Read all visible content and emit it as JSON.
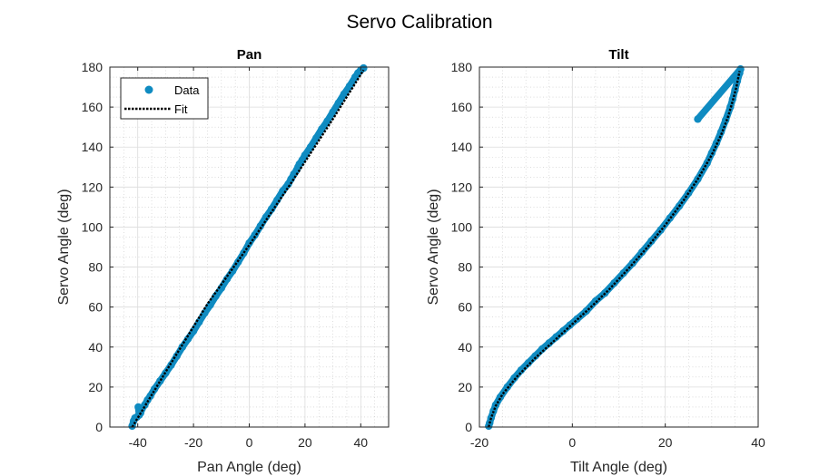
{
  "figure": {
    "title": "Servo Calibration"
  },
  "chart_data": [
    {
      "type": "scatter",
      "title": "Pan",
      "xlabel": "Pan Angle (deg)",
      "ylabel": "Servo Angle (deg)",
      "xlim": [
        -50,
        50
      ],
      "ylim": [
        0,
        180
      ],
      "xticks": [
        "-40",
        "-20",
        "0",
        "20",
        "40"
      ],
      "yticks": [
        "0",
        "20",
        "40",
        "60",
        "80",
        "100",
        "120",
        "140",
        "160",
        "180"
      ],
      "grid": true,
      "minor_grid": true,
      "legend": {
        "placement": "top-left",
        "entries": [
          "Data",
          "Fit"
        ]
      },
      "series": [
        {
          "name": "Data",
          "style": "markers",
          "color": "#0f8bc1",
          "x": [
            -42,
            -41.5,
            -41,
            -40.3,
            -39.5,
            -39.8,
            -39,
            -38.5,
            -37.5,
            -36.5,
            -35.5,
            -34,
            -32,
            -30,
            -28,
            -26,
            -24,
            -22,
            -20,
            -18,
            -16,
            -14,
            -12,
            -10,
            -8,
            -6,
            -4,
            -2,
            0,
            2,
            4,
            6,
            8,
            10,
            12,
            14,
            15,
            16,
            17,
            17.5,
            18,
            19,
            20,
            22,
            24,
            26,
            28,
            30,
            32,
            34,
            36,
            38,
            39,
            40,
            41
          ],
          "y": [
            0.5,
            3,
            4.5,
            5,
            6,
            10,
            7,
            9,
            11,
            13.5,
            15.5,
            19,
            23,
            27,
            31,
            35.5,
            40,
            44,
            48,
            52.5,
            57,
            61,
            65.5,
            69.5,
            74,
            78,
            82.5,
            87,
            92,
            96,
            100.5,
            105,
            109,
            113.5,
            118,
            121.5,
            124,
            126.5,
            128.5,
            130,
            131.5,
            133.5,
            136,
            140,
            144.5,
            149,
            153,
            157.5,
            162,
            166.5,
            170.5,
            175,
            177,
            178.5,
            179.5
          ]
        },
        {
          "name": "Fit",
          "style": "dotted-line",
          "color": "#000000",
          "x": [
            -42,
            -30,
            -15,
            0,
            15,
            30,
            41
          ],
          "y": [
            0,
            27.5,
            61.5,
            91,
            122,
            154,
            178.5
          ]
        }
      ]
    },
    {
      "type": "scatter",
      "title": "Tilt",
      "xlabel": "Tilt Angle (deg)",
      "ylabel": "Servo Angle (deg)",
      "xlim": [
        -20,
        40
      ],
      "ylim": [
        0,
        180
      ],
      "xticks": [
        "-20",
        "0",
        "20",
        "40"
      ],
      "yticks": [
        "0",
        "20",
        "40",
        "60",
        "80",
        "100",
        "120",
        "140",
        "160",
        "180"
      ],
      "grid": true,
      "minor_grid": true,
      "series": [
        {
          "name": "Data",
          "style": "markers",
          "color": "#0f8bc1",
          "x": [
            -18,
            -17.8,
            -17.5,
            -17,
            -16.5,
            -15.5,
            -14,
            -12.5,
            -11,
            -9.5,
            -8,
            -6.5,
            -5,
            -3.5,
            -2,
            -0.5,
            1,
            3,
            5,
            7,
            9,
            11,
            13,
            15,
            17,
            19,
            21,
            23,
            25,
            27,
            29,
            30,
            31,
            32,
            33,
            34,
            34.5,
            35,
            35.5,
            36,
            36.2,
            27
          ],
          "y": [
            0.5,
            2,
            4.5,
            8,
            11,
            15,
            20,
            24.5,
            28.5,
            32,
            35.5,
            39,
            42,
            45,
            48,
            51,
            54,
            58,
            63,
            67,
            72,
            77,
            82,
            87.5,
            93,
            98.5,
            104.5,
            110.5,
            117,
            124,
            132,
            137,
            142,
            147.5,
            153.5,
            160,
            164,
            168.5,
            173,
            177,
            179,
            154
          ]
        },
        {
          "name": "Fit",
          "style": "dotted-line",
          "color": "#000000",
          "x": [
            -18,
            -17.5,
            -16.5,
            -15,
            -12,
            -8,
            -4,
            0,
            4,
            8,
            12,
            16,
            20,
            24,
            27,
            30,
            32,
            33.5,
            34.5,
            35.3,
            36
          ],
          "y": [
            0,
            4.5,
            10.5,
            16.5,
            25,
            34.5,
            43,
            51.5,
            60,
            69,
            79,
            89.5,
            101,
            113.5,
            124,
            136,
            146,
            155,
            163,
            170,
            178
          ]
        }
      ]
    }
  ]
}
